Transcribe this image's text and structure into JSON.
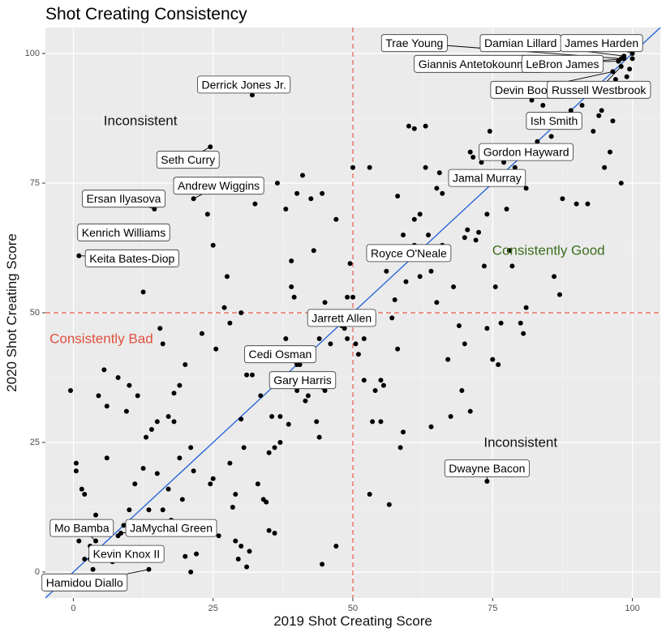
{
  "chart_data": {
    "type": "scatter",
    "title": "Shot Creating Consistency",
    "xlabel": "2019 Shot Creating Score",
    "ylabel": "2020 Shot Creating Score",
    "xlim": [
      -5,
      105
    ],
    "ylim": [
      -5,
      105
    ],
    "xticks": [
      0,
      25,
      50,
      75,
      100
    ],
    "yticks": [
      0,
      25,
      50,
      75,
      100
    ],
    "grid": true,
    "background": "#ebebeb",
    "point_color": "#000000",
    "reference_line": {
      "type": "diagonal",
      "slope": 1,
      "intercept": 0,
      "color": "#1f5fd9"
    },
    "thresholds": {
      "x": 50,
      "y": 50,
      "color": "#e05a4e",
      "style": "dashed"
    },
    "regions": [
      {
        "text": "Inconsistent",
        "x": 12,
        "y": 87,
        "color": "#111111"
      },
      {
        "text": "Consistently Good",
        "x": 85,
        "y": 62,
        "color": "#3c6e1e"
      },
      {
        "text": "Consistently Bad",
        "x": 5,
        "y": 45,
        "color": "#e0503e"
      },
      {
        "text": "Inconsistent",
        "x": 80,
        "y": 25,
        "color": "#111111"
      }
    ],
    "labeled_points": [
      {
        "name": "Trae Young",
        "x": 98,
        "y": 99,
        "lx": 61,
        "ly": 102
      },
      {
        "name": "Damian Lillard",
        "x": 98.5,
        "y": 99.5,
        "lx": 80,
        "ly": 102
      },
      {
        "name": "James Harden",
        "x": 100,
        "y": 100,
        "lx": 94.5,
        "ly": 102
      },
      {
        "name": "Giannis Antetokounmpo",
        "x": 97.5,
        "y": 98.5,
        "lx": 72.5,
        "ly": 98
      },
      {
        "name": "LeBron James",
        "x": 98.5,
        "y": 99,
        "lx": 87.5,
        "ly": 98
      },
      {
        "name": "Devin Booker",
        "x": 96.5,
        "y": 96.5,
        "lx": 81.5,
        "ly": 93
      },
      {
        "name": "Russell Westbrook",
        "x": 98,
        "y": 97.5,
        "lx": 94,
        "ly": 93
      },
      {
        "name": "Derrick Jones Jr.",
        "x": 32,
        "y": 92,
        "lx": 30.5,
        "ly": 94
      },
      {
        "name": "Ish Smith",
        "x": 87,
        "y": 86,
        "lx": 86,
        "ly": 87
      },
      {
        "name": "Gordon Hayward",
        "x": 78,
        "y": 80,
        "lx": 81,
        "ly": 81
      },
      {
        "name": "Seth Curry",
        "x": 24.5,
        "y": 82,
        "lx": 20.5,
        "ly": 79.5
      },
      {
        "name": "Jamal Murray",
        "x": 69,
        "y": 77,
        "lx": 74,
        "ly": 76
      },
      {
        "name": "Andrew Wiggins",
        "x": 21.5,
        "y": 72,
        "lx": 26,
        "ly": 74.5
      },
      {
        "name": "Ersan Ilyasova",
        "x": 14.5,
        "y": 70,
        "lx": 9,
        "ly": 72
      },
      {
        "name": "Kenrich Williams",
        "x": 12,
        "y": 65,
        "lx": 9,
        "ly": 65.5
      },
      {
        "name": "Keita Bates-Diop",
        "x": 1,
        "y": 61,
        "lx": 10.5,
        "ly": 60.5
      },
      {
        "name": "Royce O'Neale",
        "x": 61,
        "y": 63,
        "lx": 60,
        "ly": 61.5
      },
      {
        "name": "Jarrett Allen",
        "x": 48,
        "y": 47.5,
        "lx": 48,
        "ly": 49
      },
      {
        "name": "Cedi Osman",
        "x": 40,
        "y": 40,
        "lx": 37,
        "ly": 42
      },
      {
        "name": "Gary Harris",
        "x": 45,
        "y": 35,
        "lx": 41,
        "ly": 37
      },
      {
        "name": "Dwayne Bacon",
        "x": 74,
        "y": 17.5,
        "lx": 74,
        "ly": 20
      },
      {
        "name": "Mo Bamba",
        "x": 4,
        "y": 6,
        "lx": 1.5,
        "ly": 8.5
      },
      {
        "name": "JaMychal Green",
        "x": 8.5,
        "y": 7.5,
        "lx": 17.5,
        "ly": 8.5
      },
      {
        "name": "Kevin Knox II",
        "x": 3,
        "y": 2.5,
        "lx": 9.5,
        "ly": 3.5
      },
      {
        "name": "Hamidou Diallo",
        "x": 13.5,
        "y": 0.5,
        "lx": 2,
        "ly": -2
      }
    ],
    "points": [
      [
        -0.5,
        35
      ],
      [
        0.5,
        21
      ],
      [
        0.5,
        19.5
      ],
      [
        1.5,
        16
      ],
      [
        2,
        15
      ],
      [
        1,
        6
      ],
      [
        2,
        2.5
      ],
      [
        3,
        5
      ],
      [
        4,
        11
      ],
      [
        3.5,
        0.5
      ],
      [
        4.5,
        34
      ],
      [
        5.5,
        39
      ],
      [
        6,
        22
      ],
      [
        6,
        32
      ],
      [
        7,
        2
      ],
      [
        8,
        37.5
      ],
      [
        8,
        7
      ],
      [
        9,
        9
      ],
      [
        9.5,
        31
      ],
      [
        10,
        36
      ],
      [
        10,
        12
      ],
      [
        11,
        17
      ],
      [
        11.5,
        34
      ],
      [
        12.5,
        20
      ],
      [
        12.5,
        54
      ],
      [
        13,
        26
      ],
      [
        13.5,
        12
      ],
      [
        14,
        27.5
      ],
      [
        15,
        19
      ],
      [
        15,
        29
      ],
      [
        15.5,
        47
      ],
      [
        16,
        44
      ],
      [
        16,
        12
      ],
      [
        17,
        16
      ],
      [
        17,
        30
      ],
      [
        17.5,
        10
      ],
      [
        18,
        34.5
      ],
      [
        18,
        29
      ],
      [
        19,
        22
      ],
      [
        19,
        36
      ],
      [
        19.5,
        14
      ],
      [
        20,
        40
      ],
      [
        20,
        3
      ],
      [
        21,
        24
      ],
      [
        21,
        0
      ],
      [
        21.5,
        19.5
      ],
      [
        22,
        3.5
      ],
      [
        23,
        46
      ],
      [
        24,
        69
      ],
      [
        24.5,
        17
      ],
      [
        25,
        18
      ],
      [
        25,
        63
      ],
      [
        25.5,
        43
      ],
      [
        26,
        7
      ],
      [
        27,
        51
      ],
      [
        27.5,
        57
      ],
      [
        28,
        48
      ],
      [
        28,
        21
      ],
      [
        28.5,
        12.5
      ],
      [
        29,
        6
      ],
      [
        29,
        15
      ],
      [
        29.5,
        2.5
      ],
      [
        30,
        29.5
      ],
      [
        30,
        50
      ],
      [
        30,
        5
      ],
      [
        30.5,
        24
      ],
      [
        31,
        38
      ],
      [
        31,
        1
      ],
      [
        31.5,
        4
      ],
      [
        32,
        38
      ],
      [
        32.5,
        71
      ],
      [
        33,
        17
      ],
      [
        33.5,
        34
      ],
      [
        34,
        14
      ],
      [
        34.5,
        13.5
      ],
      [
        35,
        8
      ],
      [
        35,
        23
      ],
      [
        35.5,
        30
      ],
      [
        36,
        24
      ],
      [
        36,
        7.5
      ],
      [
        36.5,
        75
      ],
      [
        37,
        25
      ],
      [
        37,
        30
      ],
      [
        38,
        45
      ],
      [
        38,
        70
      ],
      [
        38.5,
        28.5
      ],
      [
        39,
        60
      ],
      [
        39,
        55
      ],
      [
        39.5,
        53
      ],
      [
        40,
        73
      ],
      [
        40,
        35
      ],
      [
        40.5,
        40
      ],
      [
        41,
        76.5
      ],
      [
        41.5,
        33
      ],
      [
        42,
        34
      ],
      [
        42.5,
        72
      ],
      [
        43,
        62
      ],
      [
        43.5,
        29
      ],
      [
        44,
        45
      ],
      [
        44,
        26
      ],
      [
        44.5,
        73
      ],
      [
        44.5,
        1.5
      ],
      [
        45,
        52
      ],
      [
        45.5,
        36
      ],
      [
        46,
        44
      ],
      [
        46.5,
        37
      ],
      [
        47,
        68
      ],
      [
        47,
        5
      ],
      [
        48,
        49
      ],
      [
        48.5,
        47
      ],
      [
        49,
        53
      ],
      [
        49,
        45
      ],
      [
        49.5,
        59.5
      ],
      [
        50,
        78
      ],
      [
        50,
        53
      ],
      [
        50.5,
        44
      ],
      [
        51,
        42
      ],
      [
        52,
        37
      ],
      [
        52,
        45
      ],
      [
        53,
        78
      ],
      [
        53,
        15
      ],
      [
        53.5,
        29
      ],
      [
        54,
        35
      ],
      [
        55,
        29
      ],
      [
        55,
        37
      ],
      [
        55.5,
        36
      ],
      [
        56,
        58
      ],
      [
        56.5,
        13
      ],
      [
        57,
        49
      ],
      [
        57.5,
        52.5
      ],
      [
        58,
        43
      ],
      [
        58,
        72.5
      ],
      [
        58.5,
        24
      ],
      [
        59,
        27
      ],
      [
        59,
        65
      ],
      [
        59.5,
        56
      ],
      [
        60,
        86
      ],
      [
        61,
        68
      ],
      [
        61,
        85.5
      ],
      [
        62,
        69
      ],
      [
        62,
        57
      ],
      [
        62.5,
        62.5
      ],
      [
        63,
        86
      ],
      [
        63,
        78
      ],
      [
        63.5,
        65
      ],
      [
        64,
        58
      ],
      [
        64,
        28
      ],
      [
        65,
        52
      ],
      [
        65,
        74
      ],
      [
        65.5,
        77
      ],
      [
        66,
        73
      ],
      [
        66,
        63
      ],
      [
        67,
        41
      ],
      [
        67,
        62
      ],
      [
        67.5,
        30
      ],
      [
        68,
        55
      ],
      [
        68,
        77
      ],
      [
        69,
        47.5
      ],
      [
        69.5,
        35
      ],
      [
        70,
        64.5
      ],
      [
        70,
        44
      ],
      [
        70.5,
        66
      ],
      [
        71,
        81
      ],
      [
        71,
        31
      ],
      [
        71.5,
        80
      ],
      [
        72,
        64
      ],
      [
        72.5,
        65.5
      ],
      [
        73,
        79
      ],
      [
        73.5,
        59
      ],
      [
        74,
        69
      ],
      [
        74,
        47
      ],
      [
        74.5,
        85
      ],
      [
        75,
        41
      ],
      [
        75.5,
        55
      ],
      [
        76,
        40
      ],
      [
        76.5,
        48
      ],
      [
        77,
        79
      ],
      [
        77.5,
        70
      ],
      [
        78,
        62
      ],
      [
        78.5,
        59
      ],
      [
        79,
        78
      ],
      [
        80,
        76
      ],
      [
        80,
        48
      ],
      [
        80.5,
        46
      ],
      [
        81,
        74
      ],
      [
        81,
        51
      ],
      [
        82,
        91
      ],
      [
        83,
        87
      ],
      [
        83,
        83
      ],
      [
        84,
        90
      ],
      [
        85,
        80
      ],
      [
        85.5,
        84
      ],
      [
        86,
        57
      ],
      [
        87,
        53.5
      ],
      [
        87.5,
        72
      ],
      [
        88,
        92
      ],
      [
        89,
        89
      ],
      [
        90,
        71
      ],
      [
        91,
        90
      ],
      [
        92,
        71
      ],
      [
        93,
        85
      ],
      [
        94,
        88
      ],
      [
        94.5,
        89
      ],
      [
        95,
        78
      ],
      [
        96,
        81
      ],
      [
        96.5,
        87
      ],
      [
        97,
        95
      ],
      [
        97.5,
        93
      ],
      [
        98,
        75
      ],
      [
        99,
        95.5
      ],
      [
        99.5,
        97
      ],
      [
        100,
        99
      ]
    ]
  }
}
